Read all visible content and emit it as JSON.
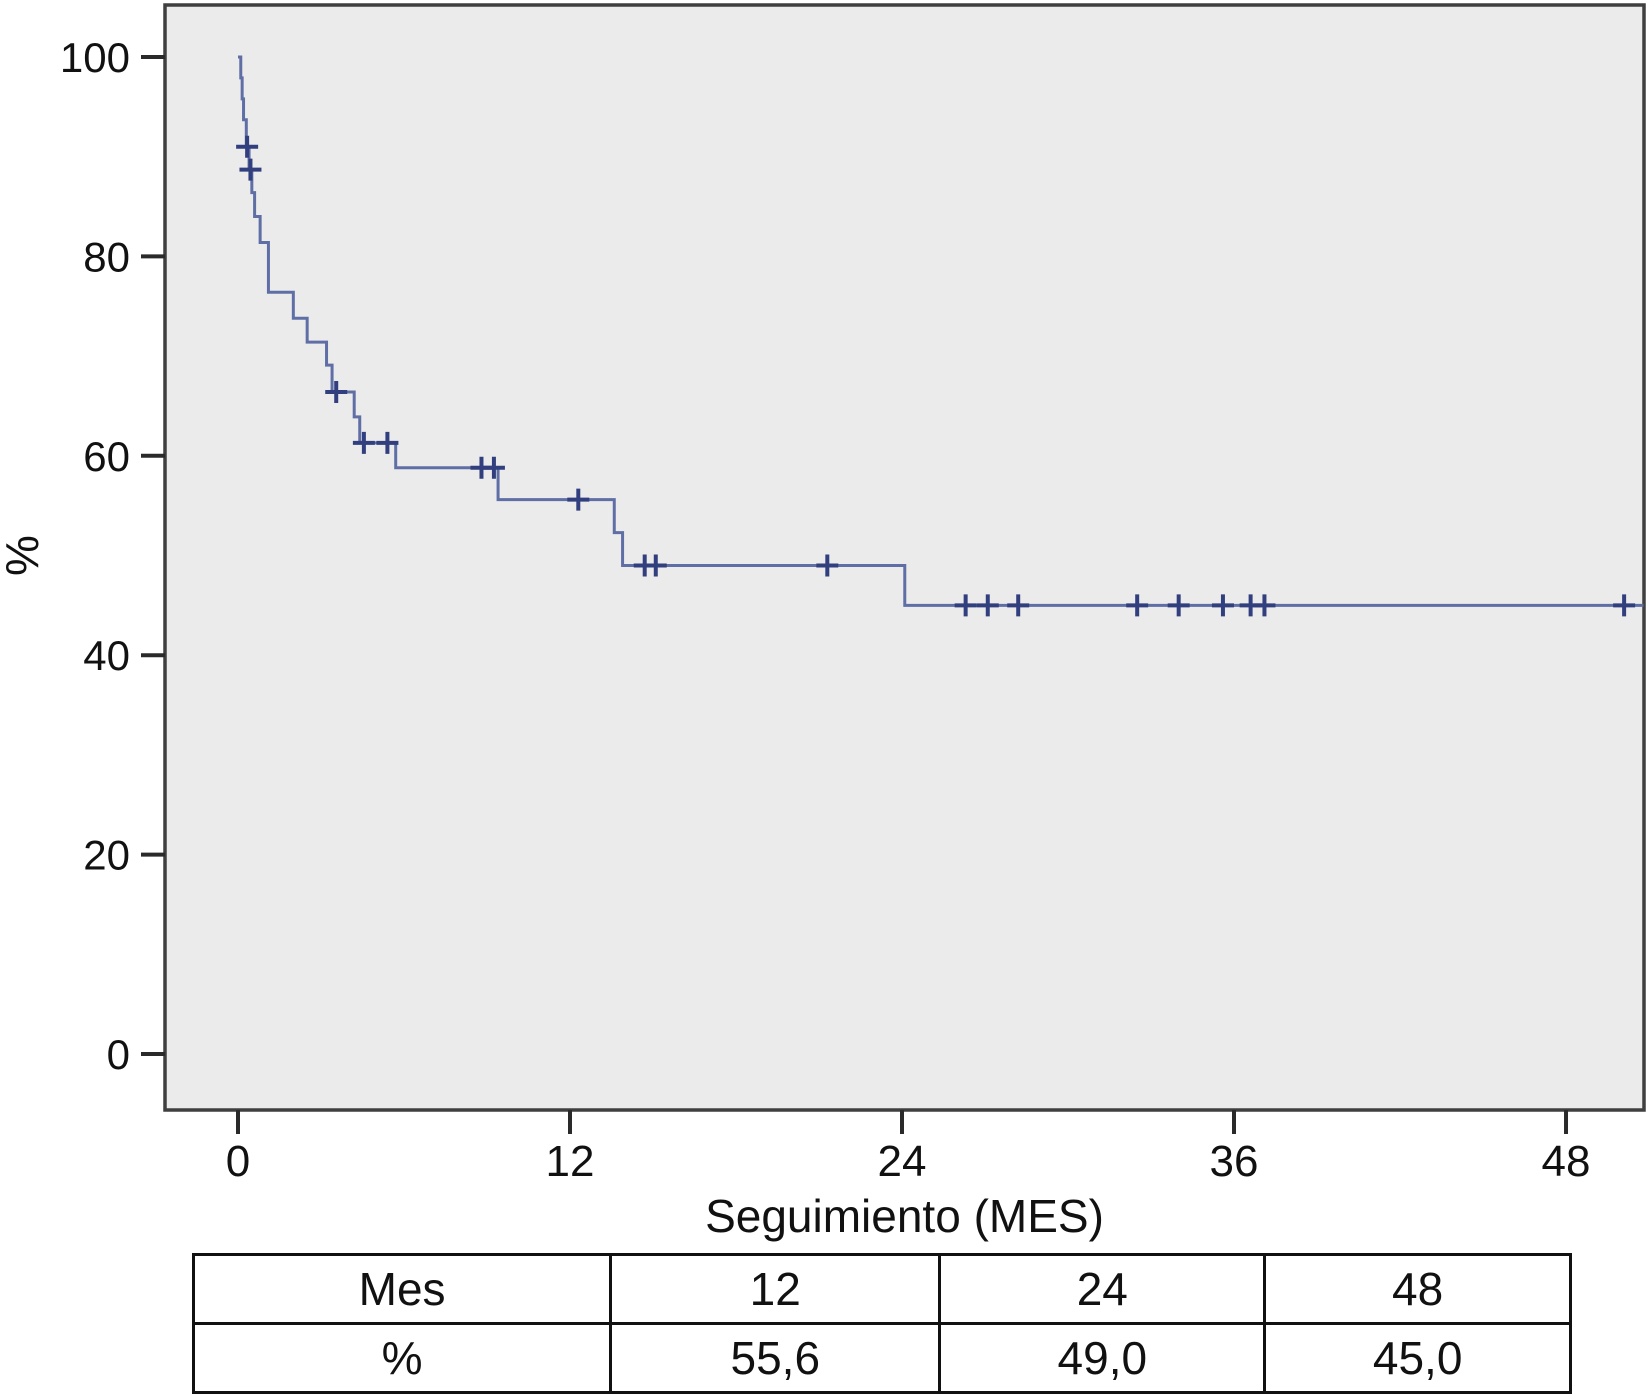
{
  "chart_data": {
    "type": "line",
    "subtype": "kaplan-meier-step-function",
    "title": "",
    "xlabel": "Seguimiento (MES)",
    "ylabel": "%",
    "x_ticks": [
      0,
      12,
      24,
      36,
      48
    ],
    "y_ticks": [
      100,
      80,
      60,
      40,
      20,
      0
    ],
    "xlim": [
      -2.6,
      50.8
    ],
    "ylim": [
      -5.6,
      105.2
    ],
    "grid": false,
    "legend": "none",
    "follow_up_end_month": 50.8,
    "steps": [
      [
        0,
        100
      ],
      [
        0.1,
        97.9
      ],
      [
        0.15,
        95.8
      ],
      [
        0.2,
        93.7
      ],
      [
        0.3,
        91.0
      ],
      [
        0.4,
        88.7
      ],
      [
        0.5,
        86.4
      ],
      [
        0.6,
        84.0
      ],
      [
        0.8,
        81.4
      ],
      [
        1.1,
        76.4
      ],
      [
        2.0,
        73.8
      ],
      [
        2.5,
        71.4
      ],
      [
        3.2,
        69.1
      ],
      [
        3.4,
        66.4
      ],
      [
        4.2,
        63.9
      ],
      [
        4.4,
        61.3
      ],
      [
        5.7,
        58.8
      ],
      [
        9.4,
        55.6
      ],
      [
        13.6,
        52.3
      ],
      [
        13.9,
        49.0
      ],
      [
        24.1,
        45.0
      ]
    ],
    "censors": [
      [
        0.33,
        91.0
      ],
      [
        0.45,
        88.7
      ],
      [
        3.55,
        66.4
      ],
      [
        4.55,
        61.3
      ],
      [
        5.4,
        61.3
      ],
      [
        8.8,
        58.8
      ],
      [
        9.25,
        58.8
      ],
      [
        12.3,
        55.6
      ],
      [
        14.7,
        49.0
      ],
      [
        15.1,
        49.0
      ],
      [
        21.3,
        49.0
      ],
      [
        26.3,
        45.0
      ],
      [
        27.1,
        45.0
      ],
      [
        28.2,
        45.0
      ],
      [
        32.5,
        45.0
      ],
      [
        34.0,
        45.0
      ],
      [
        35.6,
        45.0
      ],
      [
        36.6,
        45.0
      ],
      [
        37.1,
        45.0
      ],
      [
        50.1,
        45.0
      ]
    ],
    "colors": {
      "line": "#5f6fa6",
      "censor": "#323f7e",
      "plot_bg": "#ebebeb",
      "frame": "#3f3f3f",
      "tick": "#2a2a2a",
      "text": "#111111"
    }
  },
  "table": {
    "rows": [
      [
        "Mes",
        "12",
        "24",
        "48"
      ],
      [
        "%",
        "55,6",
        "49,0",
        "45,0"
      ]
    ]
  }
}
